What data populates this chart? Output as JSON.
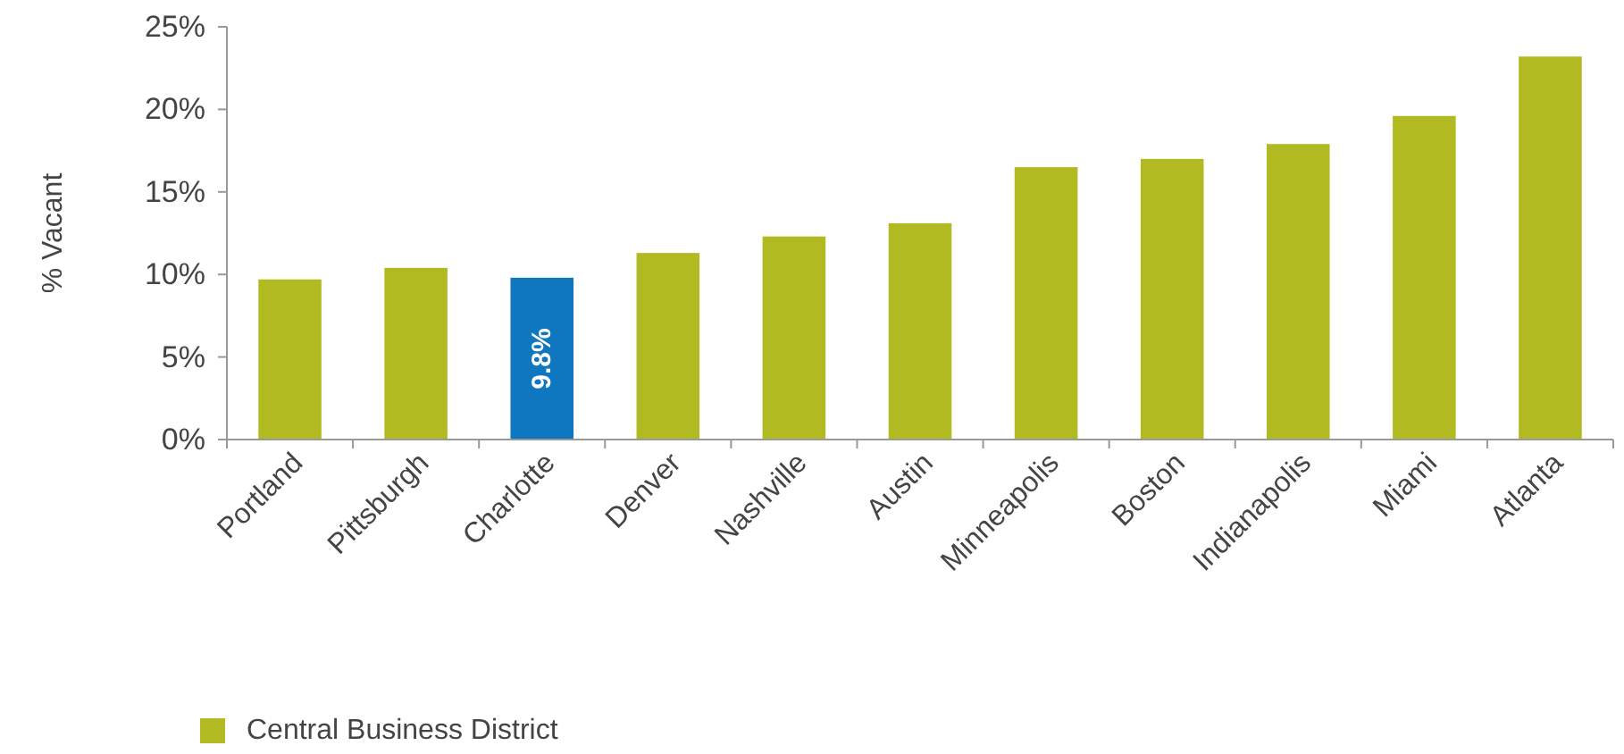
{
  "chart_data": {
    "type": "bar",
    "ylabel": "% Vacant",
    "categories": [
      "Portland",
      "Pittsburgh",
      "Charlotte",
      "Denver",
      "Nashville",
      "Austin",
      "Minneapolis",
      "Boston",
      "Indianapolis",
      "Miami",
      "Atlanta"
    ],
    "series": [
      {
        "name": "Central Business District",
        "color": "#b1bb21",
        "colors": [
          "#b1bb21",
          "#b1bb21",
          "#0f77c0",
          "#b1bb21",
          "#b1bb21",
          "#b1bb21",
          "#b1bb21",
          "#b1bb21",
          "#b1bb21",
          "#b1bb21",
          "#b1bb21"
        ],
        "values": [
          9.7,
          10.4,
          9.8,
          11.3,
          12.3,
          13.1,
          16.5,
          17.0,
          17.9,
          19.6,
          23.2
        ],
        "value_labels": [
          null,
          null,
          "9.8%",
          null,
          null,
          null,
          null,
          null,
          null,
          null,
          null
        ]
      }
    ],
    "ylim": [
      0,
      25
    ],
    "yticks": [
      {
        "value": 0,
        "label": "0%"
      },
      {
        "value": 5,
        "label": "5%"
      },
      {
        "value": 10,
        "label": "10%"
      },
      {
        "value": 15,
        "label": "15%"
      },
      {
        "value": 20,
        "label": "20%"
      },
      {
        "value": 25,
        "label": "25%"
      }
    ],
    "grid": false,
    "legend": "bottom left"
  }
}
